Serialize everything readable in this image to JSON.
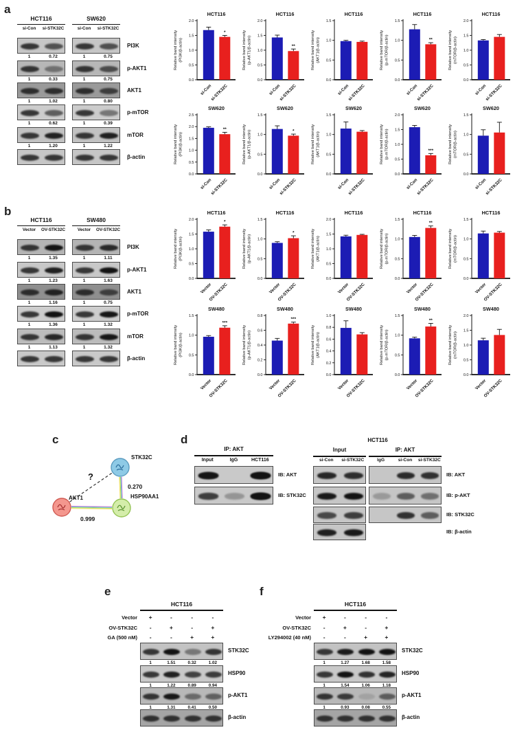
{
  "colors": {
    "bar_blue": "#1c1cb4",
    "bar_red": "#e8201e",
    "band": "#131313"
  },
  "panels": {
    "a": {
      "label": "a",
      "blots": {
        "groups": [
          {
            "cell_line": "HCT116",
            "lanes": [
              "si-Con",
              "si-STK32C"
            ]
          },
          {
            "cell_line": "SW620",
            "lanes": [
              "si-Con",
              "si-STK32C"
            ]
          }
        ],
        "rows": [
          {
            "label": "PI3K",
            "values": [
              [
                "1",
                "0.72"
              ],
              [
                "1",
                "0.75"
              ]
            ]
          },
          {
            "label": "p-AKT1",
            "values": [
              [
                "1",
                "0.33"
              ],
              [
                "1",
                "0.75"
              ]
            ]
          },
          {
            "label": "AKT1",
            "values": [
              [
                "1",
                "1.02"
              ],
              [
                "1",
                "0.80"
              ]
            ]
          },
          {
            "label": "p-mTOR",
            "values": [
              [
                "1",
                "0.62"
              ],
              [
                "1",
                "0.39"
              ]
            ]
          },
          {
            "label": "mTOR",
            "values": [
              [
                "1",
                "1.20"
              ],
              [
                "1",
                "1.22"
              ]
            ]
          },
          {
            "label": "β-actin",
            "values": null
          }
        ]
      }
    },
    "b": {
      "label": "b",
      "blots": {
        "groups": [
          {
            "cell_line": "HCT116",
            "lanes": [
              "Vector",
              "OV-STK32C"
            ]
          },
          {
            "cell_line": "SW480",
            "lanes": [
              "Vector",
              "OV-STK32C"
            ]
          }
        ],
        "rows": [
          {
            "label": "PI3K",
            "values": [
              [
                "1",
                "1.35"
              ],
              [
                "1",
                "1.11"
              ]
            ]
          },
          {
            "label": "p-AKT1",
            "values": [
              [
                "1",
                "1.23"
              ],
              [
                "1",
                "1.63"
              ]
            ]
          },
          {
            "label": "AKT1",
            "values": [
              [
                "1",
                "1.16"
              ],
              [
                "1",
                "0.75"
              ]
            ]
          },
          {
            "label": "p-mTOR",
            "values": [
              [
                "1",
                "1.36"
              ],
              [
                "1",
                "1.32"
              ]
            ]
          },
          {
            "label": "mTOR",
            "values": [
              [
                "1",
                "1.13"
              ],
              [
                "1",
                "1.32"
              ]
            ]
          },
          {
            "label": "β-actin",
            "values": null
          }
        ]
      }
    },
    "c": {
      "label": "c",
      "nodes": [
        {
          "id": "STK32C",
          "color": "blue"
        },
        {
          "id": "AKT1",
          "color": "red"
        },
        {
          "id": "HSP90AA1",
          "color": "green"
        }
      ],
      "edges": [
        {
          "from": "AKT1",
          "to": "HSP90AA1",
          "score": "0.999",
          "type": "solid"
        },
        {
          "from": "STK32C",
          "to": "HSP90AA1",
          "score": "0.270",
          "type": "solid"
        },
        {
          "from": "AKT1",
          "to": "STK32C",
          "score": "?",
          "type": "dashed"
        }
      ]
    },
    "d": {
      "label": "d",
      "left": {
        "header": "IP: AKT",
        "lanes": [
          "Input",
          "IgG",
          "HCT116"
        ],
        "rows": [
          {
            "label": "IB: AKT",
            "bands": [
              0.85,
              0,
              1
            ]
          },
          {
            "label": "IB: STK32C",
            "bands": [
              0.35,
              0.04,
              1
            ]
          }
        ]
      },
      "right": {
        "header": "HCT116",
        "groups": [
          {
            "header": "Input",
            "lanes": [
              "si-Con",
              "si-STK32C"
            ]
          },
          {
            "header": "IP: AKT",
            "lanes": [
              "IgG",
              "si-Con",
              "si-STK32C"
            ]
          }
        ],
        "row_labels": [
          "IB: AKT",
          "IB: p-AKT",
          "IB: STK32C",
          "IB: β-actin"
        ],
        "input_bands": [
          [
            0.85,
            0.8
          ],
          [
            0.95,
            1
          ],
          [
            0.6,
            0.68
          ],
          [
            0.9,
            0.95
          ]
        ],
        "ip_bands": [
          [
            0,
            0.95,
            0.9
          ],
          [
            0.06,
            0.55,
            0.4
          ],
          [
            0.02,
            0.9,
            0.55
          ]
        ]
      }
    },
    "e": {
      "label": "e",
      "header": "HCT116",
      "conditions": [
        {
          "label": "Vector",
          "signs": [
            "+",
            "-",
            "-",
            "-"
          ]
        },
        {
          "label": "OV-STK32C",
          "signs": [
            "-",
            "+",
            "-",
            "+"
          ]
        },
        {
          "label": "GA (500 nM)",
          "signs": [
            "-",
            "-",
            "+",
            "+"
          ]
        }
      ],
      "rows": [
        {
          "label": "STK32C",
          "values": [
            "1",
            "1.51",
            "0.32",
            "1.02"
          ]
        },
        {
          "label": "HSP90",
          "values": [
            "1",
            "1.22",
            "0.89",
            "0.94"
          ]
        },
        {
          "label": "p-AKT1",
          "values": [
            "1",
            "1.31",
            "0.41",
            "0.50"
          ]
        },
        {
          "label": "β-actin",
          "values": null
        }
      ]
    },
    "f": {
      "label": "f",
      "header": "HCT116",
      "conditions": [
        {
          "label": "Vector",
          "signs": [
            "+",
            "-",
            "-",
            "-"
          ]
        },
        {
          "label": "OV-STK32C",
          "signs": [
            "-",
            "+",
            "-",
            "+"
          ]
        },
        {
          "label": "LY294002 (40 nM)",
          "signs": [
            "-",
            "-",
            "+",
            "+"
          ]
        }
      ],
      "rows": [
        {
          "label": "STK32C",
          "values": [
            "1",
            "1.27",
            "1.68",
            "1.58"
          ]
        },
        {
          "label": "HSP90",
          "values": [
            "1",
            "1.54",
            "1.06",
            "1.18"
          ]
        },
        {
          "label": "p-AKT1",
          "values": [
            "1",
            "0.93",
            "0.08",
            "0.55"
          ]
        },
        {
          "label": "β-actin",
          "values": null
        }
      ]
    }
  },
  "chart_data": [
    {
      "panel": "a",
      "type": "bar",
      "title": "HCT116",
      "ylabel": "Relative band intensity",
      "ylabel2": "(PI3K/β-actin)",
      "categories": [
        "si-Con",
        "si-STK32C"
      ],
      "values": [
        1.68,
        1.45
      ],
      "errors": [
        0.1,
        0.05
      ],
      "sig": "*",
      "ylim": [
        0,
        2.0
      ],
      "ytick": 0.5
    },
    {
      "panel": "a",
      "type": "bar",
      "title": "HCT116",
      "ylabel": "Relative band intensity",
      "ylabel2": "(p-AKT1/β-actin)",
      "categories": [
        "si-Con",
        "si-STK32C"
      ],
      "values": [
        1.43,
        0.97
      ],
      "errors": [
        0.08,
        0.07
      ],
      "sig": "**",
      "ylim": [
        0,
        2.0
      ],
      "ytick": 0.5
    },
    {
      "panel": "a",
      "type": "bar",
      "title": "HCT116",
      "ylabel": "Relative band intensity",
      "ylabel2": "(AKT1/β-actin)",
      "categories": [
        "si-Con",
        "si-STK32C"
      ],
      "values": [
        0.98,
        0.96
      ],
      "errors": [
        0.02,
        0.02
      ],
      "sig": null,
      "ylim": [
        0,
        1.5
      ],
      "ytick": 0.5
    },
    {
      "panel": "a",
      "type": "bar",
      "title": "HCT116",
      "ylabel": "Relative band intensity",
      "ylabel2": "(p-mTOR/β-actin)",
      "categories": [
        "si-Con",
        "si-STK32C"
      ],
      "values": [
        1.28,
        0.9
      ],
      "errors": [
        0.12,
        0.04
      ],
      "sig": "**",
      "ylim": [
        0,
        1.5
      ],
      "ytick": 0.5
    },
    {
      "panel": "a",
      "type": "bar",
      "title": "HCT116",
      "ylabel": "Relative band intensity",
      "ylabel2": "(mTOR/β-actin)",
      "categories": [
        "si-Con",
        "si-STK32C"
      ],
      "values": [
        1.33,
        1.45
      ],
      "errors": [
        0.03,
        0.08
      ],
      "sig": null,
      "ylim": [
        0,
        2.0
      ],
      "ytick": 0.5
    },
    {
      "panel": "a",
      "type": "bar",
      "title": "SW620",
      "ylabel": "Relative band intensity",
      "ylabel2": "(PI3K/β-actin)",
      "categories": [
        "si-Con",
        "si-STK32C"
      ],
      "values": [
        1.95,
        1.68
      ],
      "errors": [
        0.04,
        0.08
      ],
      "sig": "**",
      "ylim": [
        0,
        2.5
      ],
      "ytick": 0.5
    },
    {
      "panel": "a",
      "type": "bar",
      "title": "SW620",
      "ylabel": "Relative band intensity",
      "ylabel2": "(p-AKT1/β-actin)",
      "categories": [
        "si-Con",
        "si-STK32C"
      ],
      "values": [
        1.14,
        0.97
      ],
      "errors": [
        0.08,
        0.04
      ],
      "sig": "*",
      "ylim": [
        0,
        1.5
      ],
      "ytick": 0.5
    },
    {
      "panel": "a",
      "type": "bar",
      "title": "SW620",
      "ylabel": "Relative band intensity",
      "ylabel2": "(AKT1/β-actin)",
      "categories": [
        "si-Con",
        "si-STK32C"
      ],
      "values": [
        1.15,
        1.07
      ],
      "errors": [
        0.17,
        0.03
      ],
      "sig": null,
      "ylim": [
        0,
        1.5
      ],
      "ytick": 0.5
    },
    {
      "panel": "a",
      "type": "bar",
      "title": "SW620",
      "ylabel": "Relative band intensity",
      "ylabel2": "(p-mTOR/β-actin)",
      "categories": [
        "si-Con",
        "si-STK32C"
      ],
      "values": [
        1.58,
        0.63
      ],
      "errors": [
        0.06,
        0.06
      ],
      "sig": "***",
      "ylim": [
        0,
        2.0
      ],
      "ytick": 0.5
    },
    {
      "panel": "a",
      "type": "bar",
      "title": "SW620",
      "ylabel": "Relative band intensity",
      "ylabel2": "(mTOR/β-actin)",
      "categories": [
        "si-Con",
        "si-STK32C"
      ],
      "values": [
        0.97,
        1.05
      ],
      "errors": [
        0.15,
        0.26
      ],
      "sig": null,
      "ylim": [
        0,
        1.5
      ],
      "ytick": 0.5
    },
    {
      "panel": "b",
      "type": "bar",
      "title": "HCT116",
      "ylabel": "Relative band intensity",
      "ylabel2": "(PI3K/β-actin)",
      "categories": [
        "Vector",
        "OV-STK32C"
      ],
      "values": [
        1.58,
        1.75
      ],
      "errors": [
        0.06,
        0.06
      ],
      "sig": "*",
      "ylim": [
        0,
        2.0
      ],
      "ytick": 0.5
    },
    {
      "panel": "b",
      "type": "bar",
      "title": "HCT116",
      "ylabel": "Relative band intensity",
      "ylabel2": "(p-AKT1/β-actin)",
      "categories": [
        "Vector",
        "OV-STK32C"
      ],
      "values": [
        0.9,
        1.02
      ],
      "errors": [
        0.03,
        0.06
      ],
      "sig": "*",
      "ylim": [
        0,
        1.5
      ],
      "ytick": 0.5
    },
    {
      "panel": "b",
      "type": "bar",
      "title": "HCT116",
      "ylabel": "Relative band intensity",
      "ylabel2": "(AKT1/β-actin)",
      "categories": [
        "Vector",
        "OV-STK32C"
      ],
      "values": [
        1.42,
        1.47
      ],
      "errors": [
        0.04,
        0.02
      ],
      "sig": null,
      "ylim": [
        0,
        2.0
      ],
      "ytick": 0.5
    },
    {
      "panel": "b",
      "type": "bar",
      "title": "HCT116",
      "ylabel": "Relative band intensity",
      "ylabel2": "(p-mTOR/β-actin)",
      "categories": [
        "Vector",
        "OV-STK32C"
      ],
      "values": [
        1.05,
        1.28
      ],
      "errors": [
        0.04,
        0.05
      ],
      "sig": "**",
      "ylim": [
        0,
        1.5
      ],
      "ytick": 0.5
    },
    {
      "panel": "b",
      "type": "bar",
      "title": "HCT116",
      "ylabel": "Relative band intensity",
      "ylabel2": "(mTOR/β-actin)",
      "categories": [
        "Vector",
        "OV-STK32C"
      ],
      "values": [
        1.14,
        1.16
      ],
      "errors": [
        0.06,
        0.03
      ],
      "sig": null,
      "ylim": [
        0,
        1.5
      ],
      "ytick": 0.5
    },
    {
      "panel": "b",
      "type": "bar",
      "title": "SW480",
      "ylabel": "Relative band intensity",
      "ylabel2": "(PI3K/β-actin)",
      "categories": [
        "Vector",
        "OV-STK32C"
      ],
      "values": [
        0.96,
        1.19
      ],
      "errors": [
        0.03,
        0.05
      ],
      "sig": "***",
      "ylim": [
        0,
        1.5
      ],
      "ytick": 0.5
    },
    {
      "panel": "b",
      "type": "bar",
      "title": "SW480",
      "ylabel": "Relative band intensity",
      "ylabel2": "(p-AKT1/β-actin)",
      "categories": [
        "Vector",
        "OV-STK32C"
      ],
      "values": [
        0.46,
        0.69
      ],
      "errors": [
        0.03,
        0.02
      ],
      "sig": "***",
      "ylim": [
        0,
        0.8
      ],
      "ytick": 0.2
    },
    {
      "panel": "b",
      "type": "bar",
      "title": "SW480",
      "ylabel": "Relative band intensity",
      "ylabel2": "(AKT1/β-actin)",
      "categories": [
        "Vector",
        "OV-STK32C"
      ],
      "values": [
        0.79,
        0.68
      ],
      "errors": [
        0.12,
        0.03
      ],
      "sig": null,
      "ylim": [
        0,
        1.0
      ],
      "ytick": 0.2
    },
    {
      "panel": "b",
      "type": "bar",
      "title": "SW480",
      "ylabel": "Relative band intensity",
      "ylabel2": "(p-mTOR/β-actin)",
      "categories": [
        "Vector",
        "OV-STK32C"
      ],
      "values": [
        0.92,
        1.22
      ],
      "errors": [
        0.03,
        0.08
      ],
      "sig": "**",
      "ylim": [
        0,
        1.5
      ],
      "ytick": 0.5
    },
    {
      "panel": "b",
      "type": "bar",
      "title": "SW480",
      "ylabel": "Relative band intensity",
      "ylabel2": "(mTOR/β-actin)",
      "categories": [
        "Vector",
        "OV-STK32C"
      ],
      "values": [
        1.16,
        1.34
      ],
      "errors": [
        0.07,
        0.19
      ],
      "sig": null,
      "ylim": [
        0,
        2.0
      ],
      "ytick": 0.5
    }
  ]
}
